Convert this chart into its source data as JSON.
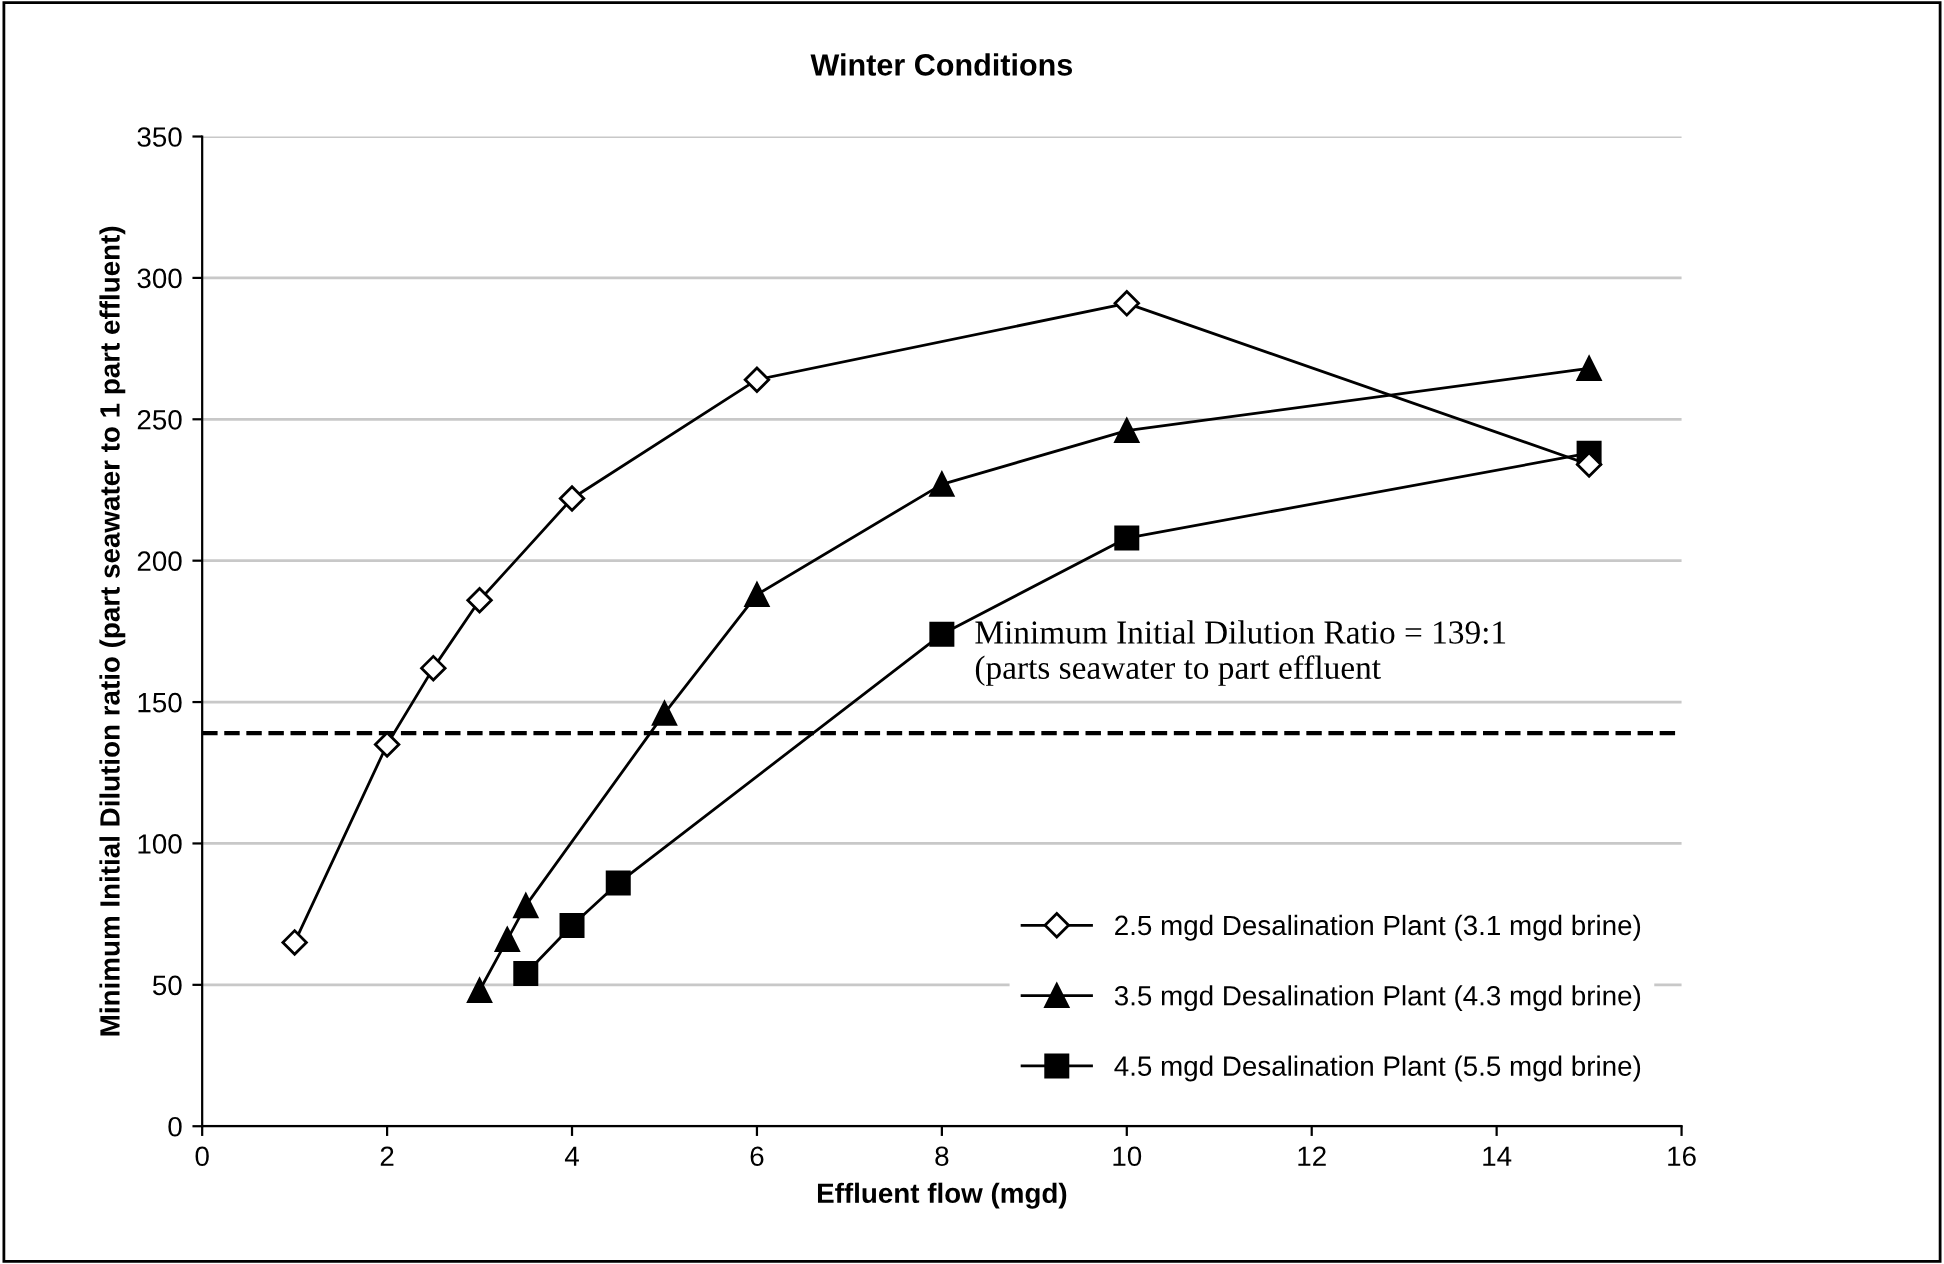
{
  "chart_data": {
    "type": "line",
    "title": "Winter Conditions",
    "xlabel": "Effluent flow (mgd)",
    "ylabel": "Minimum Initial Dilution ratio (part seawater to 1 part effluent)",
    "series": [
      {
        "name": "2.5 mgd Desalination Plant (3.1 mgd brine)",
        "color": "#000000",
        "marker": "diamond",
        "x": [
          1,
          2,
          2.5,
          3,
          4,
          6,
          10,
          15
        ],
        "values": [
          65,
          135,
          162,
          186,
          222,
          264,
          291,
          234
        ]
      },
      {
        "name": "3.5 mgd Desalination Plant (4.3 mgd brine)",
        "color": "#000000",
        "marker": "triangle",
        "x": [
          3,
          3.3,
          3.5,
          5,
          6,
          8,
          10,
          15
        ],
        "values": [
          48,
          66,
          78,
          146,
          188,
          227,
          246,
          268
        ]
      },
      {
        "name": "4.5 mgd Desalination Plant (5.5 mgd brine)",
        "color": "#000000",
        "marker": "square",
        "x": [
          3.5,
          4,
          4.5,
          8,
          10,
          15
        ],
        "values": [
          54,
          71,
          86,
          174,
          208,
          238
        ]
      }
    ],
    "ref_lines": [
      {
        "axis": "y",
        "value": 139,
        "line_style": "dashed",
        "color": "#000000"
      }
    ],
    "annotations": [
      "Minimum Initial Dilution Ratio = 139:1\n(parts seawater to part effluent"
    ],
    "xlim": [
      0,
      16
    ],
    "xticks": [
      0,
      2,
      4,
      6,
      8,
      10,
      12,
      14,
      16
    ],
    "ylim": [
      0,
      350
    ],
    "yticks": [
      0,
      50,
      100,
      150,
      200,
      250,
      300,
      350
    ],
    "grid": "y",
    "legend": "bottom right",
    "line_style": "solid"
  }
}
